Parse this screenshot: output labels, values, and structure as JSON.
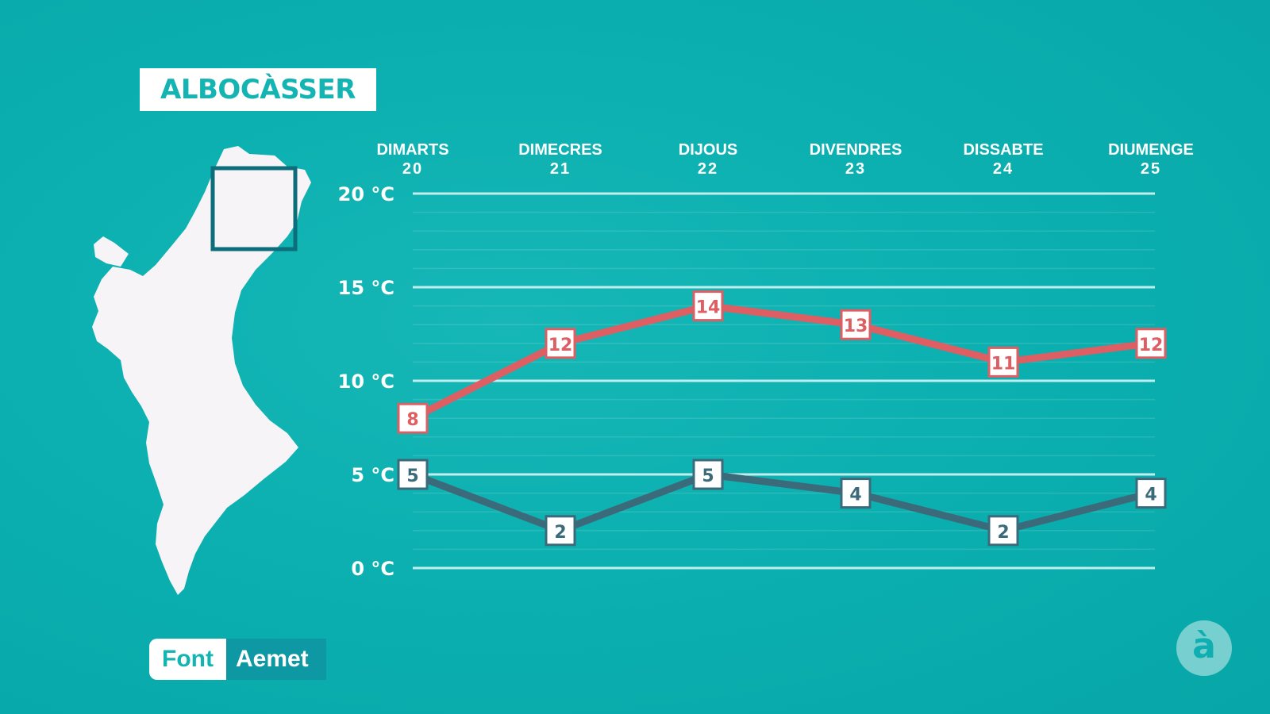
{
  "location": "ALBOCÀSSER",
  "source": {
    "label": "Font",
    "value": "Aemet"
  },
  "logo": "à",
  "colors": {
    "background": "#0cb0b0",
    "max_line": "#dd5e63",
    "min_line": "#3b6b7a",
    "grid": "#bfeeee"
  },
  "chart_data": {
    "type": "line",
    "categories": [
      {
        "day": "DIMARTS",
        "date": "20"
      },
      {
        "day": "DIMECRES",
        "date": "21"
      },
      {
        "day": "DIJOUS",
        "date": "22"
      },
      {
        "day": "DIVENDRES",
        "date": "23"
      },
      {
        "day": "DISSABTE",
        "date": "24"
      },
      {
        "day": "DIUMENGE",
        "date": "25"
      }
    ],
    "yticks": [
      {
        "value": 20,
        "label": "20 °C"
      },
      {
        "value": 15,
        "label": "15 °C"
      },
      {
        "value": 10,
        "label": "10 °C"
      },
      {
        "value": 5,
        "label": "5 °C"
      },
      {
        "value": 0,
        "label": "0 °C"
      }
    ],
    "ylim": [
      0,
      20
    ],
    "series": [
      {
        "key": "max",
        "values": [
          8,
          12,
          14,
          13,
          11,
          12
        ],
        "color": "#dd5e63"
      },
      {
        "key": "min",
        "values": [
          5,
          2,
          5,
          4,
          2,
          4
        ],
        "color": "#3b6b7a"
      }
    ]
  }
}
